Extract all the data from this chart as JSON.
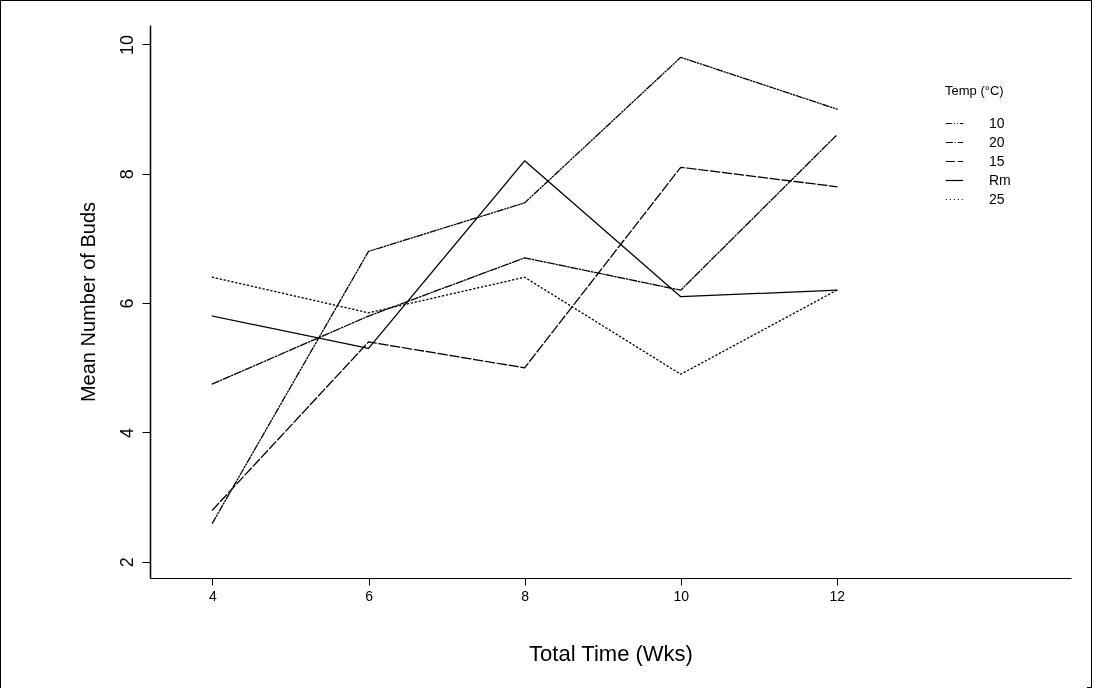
{
  "chart_data": {
    "type": "line",
    "xlabel": "Total Time (Wks)",
    "ylabel": "Mean Number of Buds",
    "legend_title": "Temp (°C)",
    "x": [
      4,
      6,
      8,
      10,
      12
    ],
    "xlim": [
      3.2,
      15
    ],
    "xticks": [
      4,
      6,
      8,
      10,
      12
    ],
    "ylim": [
      1.75,
      10.3
    ],
    "yticks": [
      2,
      4,
      6,
      8,
      10
    ],
    "grid": false,
    "legend": "top right",
    "marker": "none",
    "series": [
      {
        "name": "10",
        "color": "#000000",
        "line_style": "dashdotdot",
        "values": [
          2.6,
          6.8,
          7.55,
          9.8,
          9.0
        ]
      },
      {
        "name": "20",
        "color": "#000000",
        "line_style": "dashdot",
        "values": [
          4.75,
          5.8,
          6.7,
          6.2,
          8.6
        ]
      },
      {
        "name": "15",
        "color": "#000000",
        "line_style": "dashed",
        "values": [
          2.8,
          5.4,
          5.0,
          8.1,
          7.8
        ]
      },
      {
        "name": "Rm",
        "color": "#000000",
        "line_style": "solid",
        "values": [
          5.8,
          5.3,
          8.2,
          6.1,
          6.2
        ]
      },
      {
        "name": "25",
        "color": "#000000",
        "line_style": "dotted",
        "values": [
          6.4,
          5.85,
          6.4,
          4.9,
          6.2
        ]
      }
    ]
  }
}
